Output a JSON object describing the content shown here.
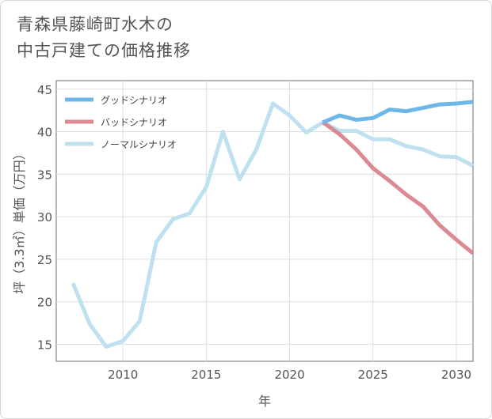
{
  "title_lines": [
    "青森県藤崎町水木の",
    "中古戸建ての価格推移"
  ],
  "chart_data": {
    "type": "line",
    "title": "青森県藤崎町水木の中古戸建ての価格推移",
    "xlabel": "年",
    "ylabel": "坪（3.3㎡）単価（万円）",
    "xlim": [
      2006,
      2031
    ],
    "ylim": [
      13,
      46
    ],
    "xticks": [
      2010,
      2015,
      2020,
      2025,
      2030
    ],
    "yticks": [
      15,
      20,
      25,
      30,
      35,
      40,
      45
    ],
    "grid": true,
    "legend_position": "top-left",
    "series": [
      {
        "name": "グッドシナリオ",
        "color": "#6cb6e8",
        "x": [
          2022,
          2023,
          2024,
          2025,
          2026,
          2027,
          2028,
          2029,
          2030,
          2031
        ],
        "y": [
          41.1,
          41.9,
          41.4,
          41.6,
          42.6,
          42.4,
          42.8,
          43.2,
          43.3,
          43.5
        ]
      },
      {
        "name": "バッドシナリオ",
        "color": "#db8a93",
        "x": [
          2022,
          2023,
          2024,
          2025,
          2026,
          2027,
          2028,
          2029,
          2030,
          2031
        ],
        "y": [
          41.1,
          39.7,
          37.9,
          35.7,
          34.2,
          32.6,
          31.2,
          29.0,
          27.3,
          25.7
        ]
      },
      {
        "name": "ノーマルシナリオ",
        "color": "#bfe0ee",
        "x": [
          2007,
          2008,
          2009,
          2010,
          2011,
          2012,
          2013,
          2014,
          2015,
          2016,
          2017,
          2018,
          2019,
          2020,
          2021,
          2022,
          2023,
          2024,
          2025,
          2026,
          2027,
          2028,
          2029,
          2030,
          2031
        ],
        "y": [
          22.2,
          17.4,
          14.7,
          15.4,
          17.7,
          27.0,
          29.7,
          30.4,
          33.5,
          40.0,
          34.4,
          37.9,
          43.3,
          41.9,
          39.9,
          41.1,
          40.1,
          40.1,
          39.1,
          39.1,
          38.3,
          37.9,
          37.1,
          37.0,
          36.0
        ]
      }
    ]
  }
}
